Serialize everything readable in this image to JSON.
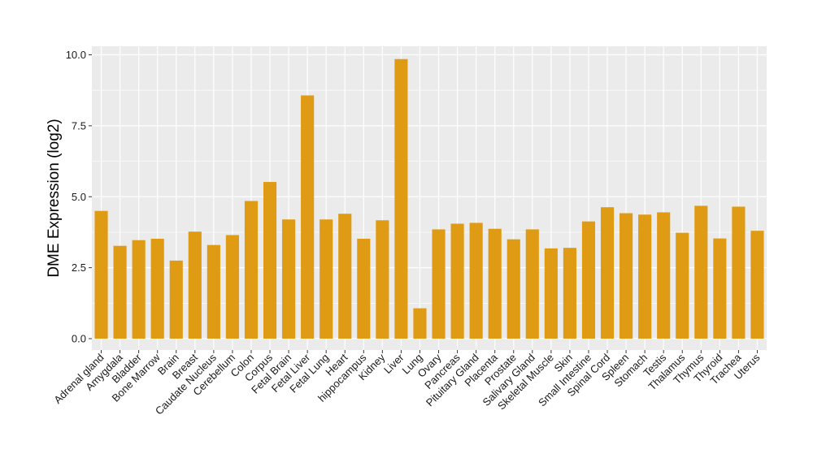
{
  "chart_data": {
    "type": "bar",
    "ylabel": "DME Expression (log2)",
    "xlabel": "",
    "title": "",
    "ylim": [
      -0.4,
      10.3
    ],
    "yticks": [
      0.0,
      2.5,
      5.0,
      7.5,
      10.0
    ],
    "ytick_labels": [
      "0.0",
      "2.5",
      "5.0",
      "7.5",
      "10.0"
    ],
    "grid": true,
    "bar_color": "#E09B14",
    "panel_background": "#EBEBEB",
    "grid_color": "#FFFFFF",
    "categories": [
      "Adrenal gland",
      "Amygdala",
      "Bladder",
      "Bone Marrow",
      "Brain",
      "Breast",
      "Caudate Nucleus",
      "Cerebellum",
      "Colon",
      "Corpus",
      "Fetal Brain",
      "Fetal Liver",
      "Fetal Lung",
      "Heart",
      "hippocampus",
      "Kidney",
      "Liver",
      "Lung",
      "Ovary",
      "Pancreas",
      "Pituitary Gland",
      "Placenta",
      "Prostate",
      "Salivary Gland",
      "Skeletal Muscle",
      "Skin",
      "Small Intestine",
      "Spinal Cord",
      "Spleen",
      "Stomach",
      "Testis",
      "Thalamus",
      "Thymus",
      "Thyroid",
      "Trachea",
      "Uterus"
    ],
    "values": [
      4.5,
      3.27,
      3.47,
      3.52,
      2.75,
      3.77,
      3.3,
      3.65,
      4.85,
      5.52,
      4.2,
      8.57,
      4.2,
      4.4,
      3.52,
      4.17,
      9.85,
      1.07,
      3.85,
      4.05,
      4.08,
      3.87,
      3.5,
      3.85,
      3.18,
      3.2,
      4.13,
      4.63,
      4.42,
      4.37,
      4.45,
      3.73,
      4.68,
      3.53,
      4.65,
      3.8
    ]
  }
}
